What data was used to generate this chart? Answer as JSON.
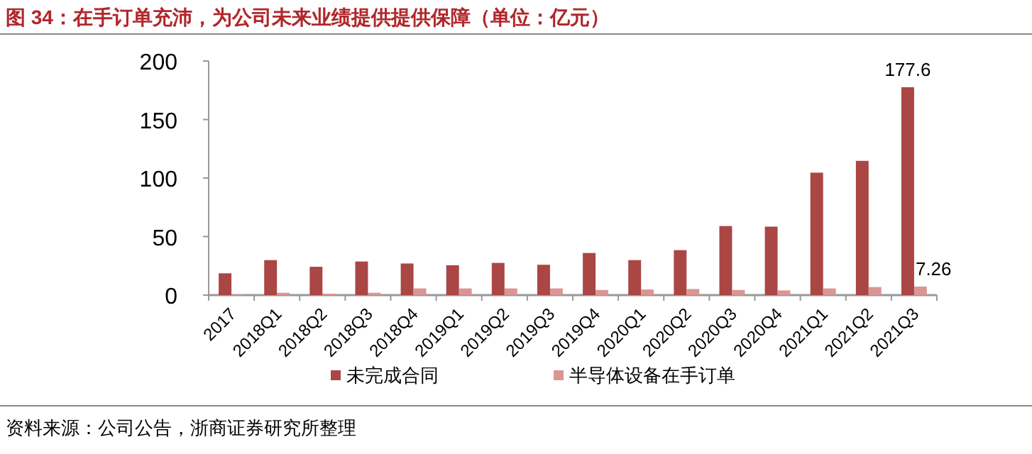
{
  "chart_data": {
    "type": "bar",
    "title": "图 34：在手订单充沛，为公司未来业绩提供提供保障（单位：亿元）",
    "categories": [
      "2017",
      "2018Q1",
      "2018Q2",
      "2018Q3",
      "2018Q4",
      "2019Q1",
      "2019Q2",
      "2019Q3",
      "2019Q4",
      "2020Q1",
      "2020Q2",
      "2020Q3",
      "2020Q4",
      "2021Q1",
      "2021Q2",
      "2021Q3"
    ],
    "series": [
      {
        "name": "未完成合同",
        "color": "#aa4644",
        "values": [
          18.6,
          29.9,
          24.2,
          28.7,
          27,
          25.5,
          27.5,
          25.9,
          36,
          29.9,
          38.4,
          59,
          58.5,
          104.6,
          114.7,
          177.6
        ],
        "value_labels": [
          null,
          null,
          null,
          null,
          null,
          null,
          null,
          null,
          null,
          null,
          null,
          null,
          null,
          null,
          null,
          "177.6"
        ]
      },
      {
        "name": "半导体设备在手订单",
        "color": "#d99694",
        "values": [
          0.5,
          2,
          1.2,
          2,
          5.7,
          5.7,
          5.7,
          5.7,
          4.4,
          4.8,
          5.2,
          4.4,
          4,
          5.7,
          6.9,
          7.26
        ],
        "value_labels": [
          null,
          null,
          null,
          null,
          null,
          null,
          null,
          null,
          null,
          null,
          null,
          null,
          null,
          null,
          null,
          "7.26"
        ]
      }
    ],
    "ylim": [
      0,
      200
    ],
    "yticks": [
      0,
      50,
      100,
      150,
      200
    ],
    "legend": "bottom",
    "annotations": [
      "资料来源：公司公告，浙商证券研究所整理"
    ]
  }
}
